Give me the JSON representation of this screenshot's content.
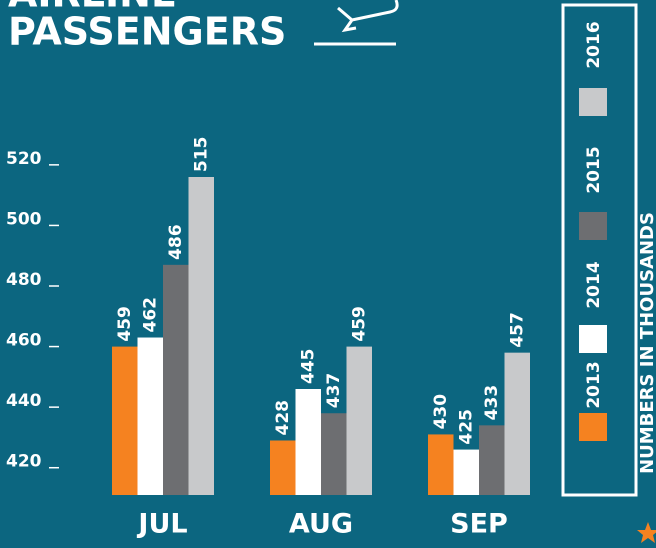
{
  "chart_data": {
    "type": "bar",
    "title": [
      "AIRLINE",
      "PASSENGERS"
    ],
    "note": "NUMBERS IN THOUSANDS",
    "categories": [
      "JUL",
      "AUG",
      "SEP"
    ],
    "series": [
      {
        "name": "2013",
        "color": "#f58220",
        "values": [
          459,
          428,
          430
        ]
      },
      {
        "name": "2014",
        "color": "#ffffff",
        "values": [
          462,
          445,
          425
        ]
      },
      {
        "name": "2015",
        "color": "#6d6e71",
        "values": [
          486,
          437,
          433
        ]
      },
      {
        "name": "2016",
        "color": "#c8c9cb",
        "values": [
          515,
          459,
          457
        ]
      }
    ],
    "ylim": [
      410,
      550
    ],
    "yticks": [
      420,
      440,
      460,
      480,
      500,
      520
    ],
    "grid": false,
    "legend": "right"
  }
}
